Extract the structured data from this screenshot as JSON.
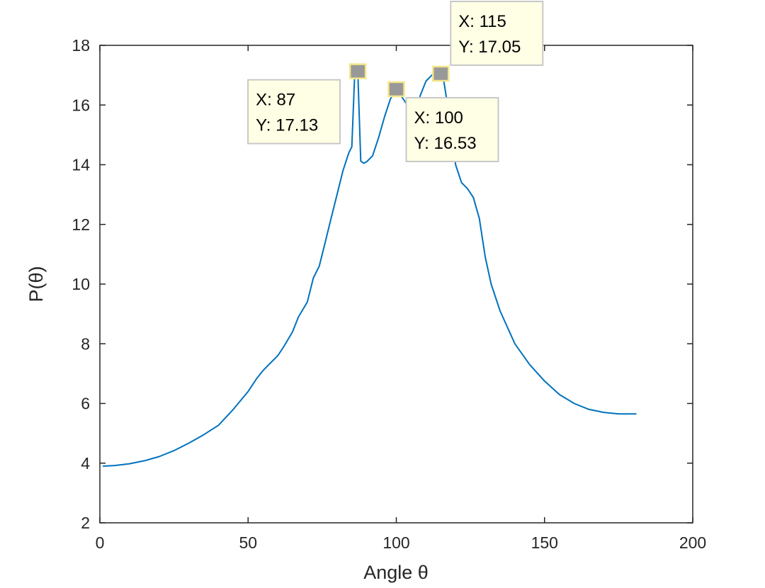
{
  "chart_data": {
    "type": "line",
    "xlabel": "Angle θ",
    "ylabel": "P(θ)",
    "xlim": [
      0,
      200
    ],
    "ylim": [
      2,
      18
    ],
    "xticks": [
      0,
      50,
      100,
      150,
      200
    ],
    "yticks": [
      2,
      4,
      6,
      8,
      10,
      12,
      14,
      16,
      18
    ],
    "grid": false,
    "series": [
      {
        "x": [
          1,
          5,
          10,
          15,
          20,
          25,
          30,
          35,
          40,
          45,
          50,
          53,
          55,
          58,
          60,
          62,
          65,
          67,
          70,
          72,
          74,
          75,
          76,
          78,
          80,
          82,
          84,
          85,
          86,
          87,
          88,
          89,
          90,
          92,
          94,
          96,
          98,
          100,
          101,
          103,
          105,
          107,
          108,
          110,
          112,
          113,
          114,
          115,
          116,
          117,
          118,
          119,
          120,
          122,
          124,
          126,
          128,
          130,
          132,
          135,
          140,
          145,
          150,
          155,
          160,
          165,
          170,
          175,
          181
        ],
        "y": [
          3.9,
          3.92,
          3.98,
          4.08,
          4.22,
          4.42,
          4.67,
          4.95,
          5.27,
          5.8,
          6.4,
          6.85,
          7.1,
          7.4,
          7.6,
          7.9,
          8.4,
          8.9,
          9.4,
          10.2,
          10.6,
          11.0,
          11.4,
          12.2,
          13.0,
          13.8,
          14.4,
          14.6,
          17.13,
          17.13,
          14.12,
          14.05,
          14.1,
          14.3,
          14.9,
          15.6,
          16.2,
          16.53,
          16.4,
          16.1,
          15.8,
          15.9,
          16.3,
          16.8,
          17.0,
          17.05,
          17.05,
          17.05,
          16.8,
          16.2,
          15.4,
          14.8,
          14.0,
          13.4,
          13.2,
          12.9,
          12.2,
          10.9,
          10.0,
          9.1,
          8.0,
          7.3,
          6.75,
          6.3,
          6.0,
          5.8,
          5.7,
          5.65,
          5.65
        ],
        "color": "#0072BD"
      }
    ],
    "datatips": [
      {
        "x_text": "X: 87",
        "y_text": "Y: 17.13",
        "x": 87,
        "y": 17.13,
        "box_placement": "lower-left"
      },
      {
        "x_text": "X: 100",
        "y_text": "Y: 16.53",
        "x": 100,
        "y": 16.53,
        "box_placement": "lower-right"
      },
      {
        "x_text": "X: 115",
        "y_text": "Y: 17.05",
        "x": 115,
        "y": 17.05,
        "box_placement": "upper-right"
      }
    ]
  }
}
